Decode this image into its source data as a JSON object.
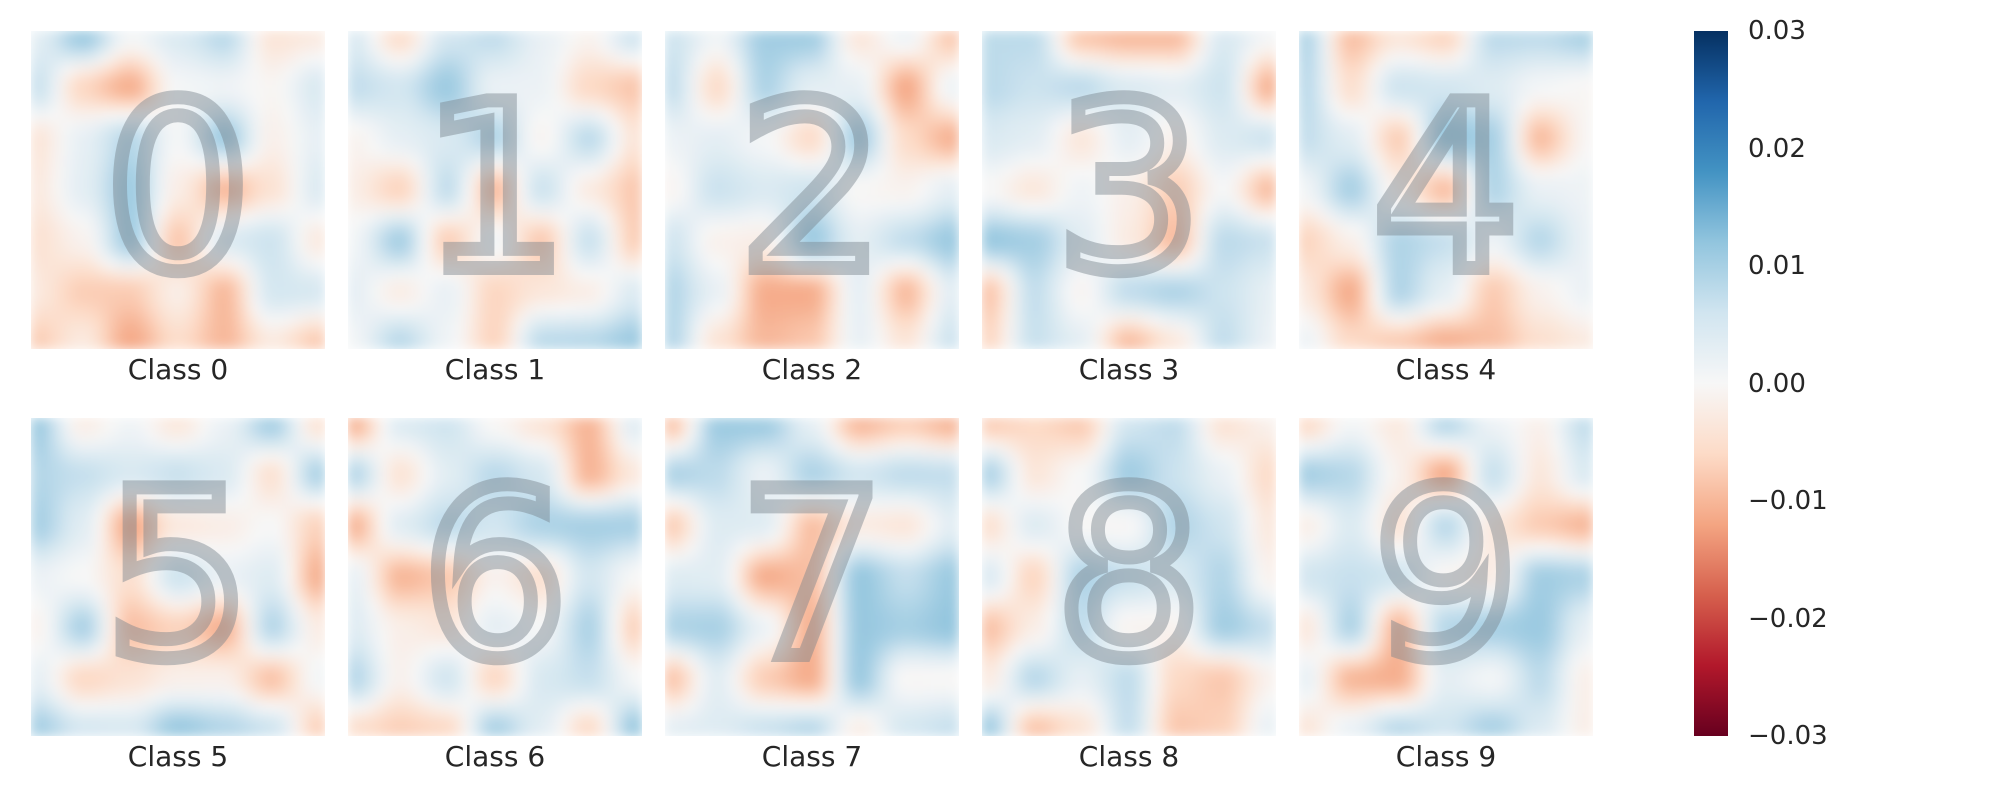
{
  "chart_data": {
    "type": "heatmap",
    "title": "",
    "description_note": "",
    "colormap": "RdBu",
    "colormap_stops": [
      "#67001f",
      "#b2182b",
      "#d6604d",
      "#f4a582",
      "#fddbc7",
      "#f7f7f7",
      "#d1e5f0",
      "#92c5de",
      "#4393c3",
      "#2166ac",
      "#053061"
    ],
    "vmin": -0.03,
    "vmax": 0.03,
    "panels": [
      {
        "label": "Class 0",
        "digit": "0"
      },
      {
        "label": "Class 1",
        "digit": "1"
      },
      {
        "label": "Class 2",
        "digit": "2"
      },
      {
        "label": "Class 3",
        "digit": "3"
      },
      {
        "label": "Class 4",
        "digit": "4"
      },
      {
        "label": "Class 5",
        "digit": "5"
      },
      {
        "label": "Class 6",
        "digit": "6"
      },
      {
        "label": "Class 7",
        "digit": "7"
      },
      {
        "label": "Class 8",
        "digit": "8"
      },
      {
        "label": "Class 9",
        "digit": "9"
      }
    ],
    "colorbar": {
      "ticks": [
        0.03,
        0.02,
        0.01,
        0.0,
        -0.01,
        -0.02,
        -0.03
      ],
      "tick_labels": [
        "0.03",
        "0.02",
        "0.01",
        "0.00",
        "−0.01",
        "−0.02",
        "−0.03"
      ]
    }
  }
}
